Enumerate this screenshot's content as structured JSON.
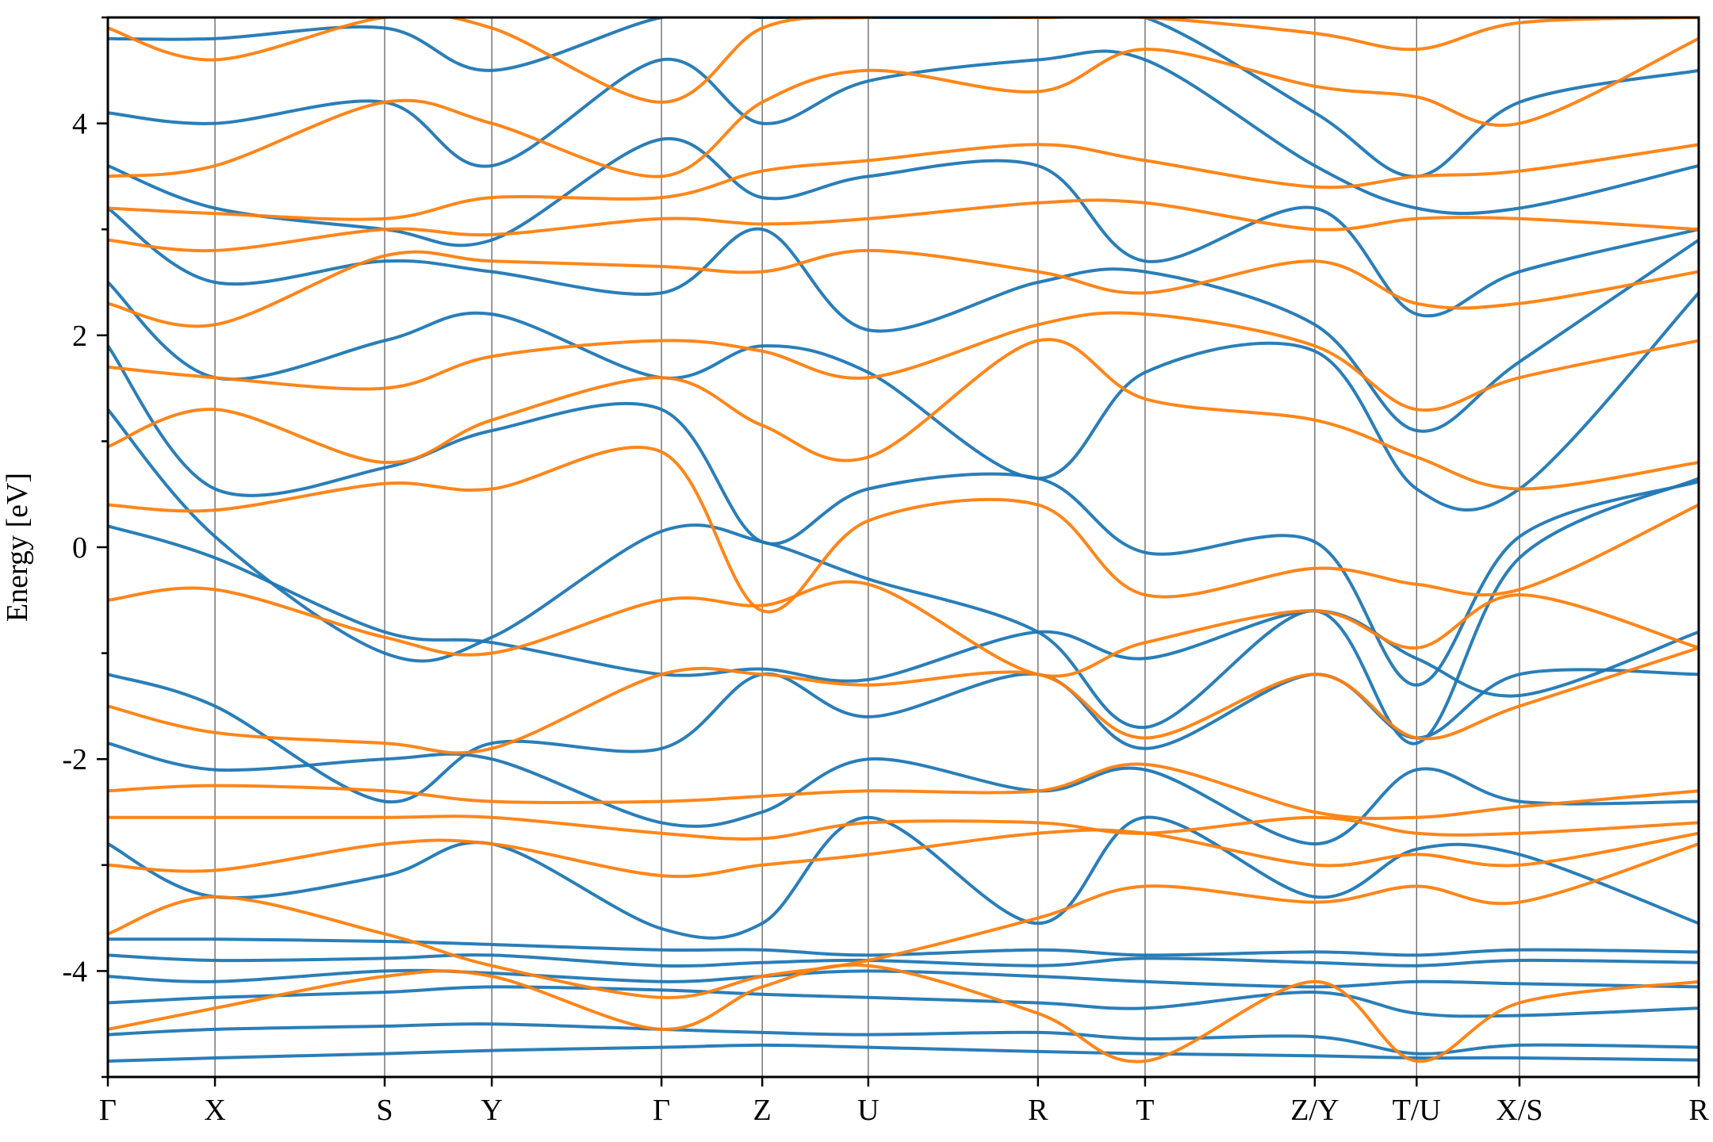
{
  "chart_data": {
    "type": "line",
    "title": "",
    "xlabel": "",
    "ylabel": "Energy [eV]",
    "ylim": [
      -5,
      5
    ],
    "yticks": [
      -4,
      -2,
      0,
      2,
      4
    ],
    "ytick_labels": [
      "-4",
      "-2",
      "0",
      "2",
      "4"
    ],
    "k_points": [
      "Γ",
      "X",
      "S",
      "Y",
      "Γ",
      "Z",
      "U",
      "R",
      "T",
      "Z/Y",
      "T/U",
      "X/S",
      "R"
    ],
    "k_distances": [
      0,
      0.101,
      0.261,
      0.362,
      0.522,
      0.617,
      0.717,
      0.877,
      0.978,
      1.138,
      1.234,
      1.331,
      1.5
    ],
    "grid": {
      "x_vertical_lines_at_k_points": true,
      "y_grid": false
    },
    "legend": "none",
    "series": [
      {
        "color": "#1f77b4",
        "bands": [
          [
            -4.85,
            -4.82,
            -4.78,
            -4.75,
            -4.72,
            -4.7,
            -4.72,
            -4.76,
            -4.78,
            -4.8,
            -4.82,
            -4.82,
            -4.84
          ],
          [
            -4.6,
            -4.55,
            -4.52,
            -4.5,
            -4.55,
            -4.58,
            -4.6,
            -4.58,
            -4.64,
            -4.62,
            -4.78,
            -4.7,
            -4.72
          ],
          [
            -4.3,
            -4.25,
            -4.2,
            -4.15,
            -4.18,
            -4.22,
            -4.25,
            -4.3,
            -4.35,
            -4.2,
            -4.4,
            -4.42,
            -4.35
          ],
          [
            -4.05,
            -4.1,
            -4.0,
            -4.02,
            -4.1,
            -4.05,
            -4.0,
            -4.05,
            -4.1,
            -4.15,
            -4.1,
            -4.12,
            -4.15
          ],
          [
            -3.85,
            -3.9,
            -3.88,
            -3.85,
            -3.95,
            -3.92,
            -3.9,
            -3.95,
            -3.88,
            -3.92,
            -3.95,
            -3.9,
            -3.92
          ],
          [
            -3.7,
            -3.7,
            -3.72,
            -3.75,
            -3.8,
            -3.8,
            -3.85,
            -3.8,
            -3.85,
            -3.82,
            -3.85,
            -3.8,
            -3.82
          ],
          [
            -2.8,
            -3.3,
            -3.1,
            -2.8,
            -3.6,
            -3.55,
            -2.55,
            -3.55,
            -2.55,
            -3.3,
            -2.85,
            -2.9,
            -3.55
          ],
          [
            -1.85,
            -2.1,
            -2.0,
            -2.0,
            -2.6,
            -2.5,
            -2.0,
            -2.3,
            -2.1,
            -2.8,
            -2.1,
            -2.4,
            -2.4
          ],
          [
            -1.2,
            -1.5,
            -2.4,
            -1.85,
            -1.9,
            -1.2,
            -1.6,
            -1.2,
            -1.9,
            -1.2,
            -1.8,
            -1.2,
            -1.2
          ],
          [
            0.2,
            -0.1,
            -0.8,
            -0.9,
            -1.2,
            -1.15,
            -1.25,
            -0.8,
            -1.05,
            -0.6,
            -1.05,
            -1.4,
            -0.8
          ],
          [
            1.3,
            0.1,
            -1.0,
            -0.85,
            0.15,
            0.05,
            -0.3,
            -0.8,
            -1.7,
            -0.6,
            -1.85,
            -0.1,
            0.65
          ],
          [
            1.9,
            0.55,
            0.75,
            1.1,
            1.3,
            0.05,
            0.55,
            0.65,
            -0.05,
            0.05,
            -1.3,
            0.1,
            0.62
          ],
          [
            2.5,
            1.6,
            1.95,
            2.2,
            1.6,
            1.9,
            1.65,
            0.65,
            1.65,
            1.85,
            0.55,
            0.55,
            2.4
          ],
          [
            3.2,
            2.5,
            2.7,
            2.6,
            2.4,
            3.0,
            2.05,
            2.5,
            2.6,
            2.1,
            1.1,
            1.75,
            2.9
          ],
          [
            3.6,
            3.2,
            3.0,
            2.9,
            3.85,
            3.3,
            3.5,
            3.6,
            2.7,
            3.2,
            2.2,
            2.6,
            3.0
          ],
          [
            4.1,
            4.0,
            4.2,
            3.6,
            4.6,
            4.0,
            4.4,
            4.6,
            4.6,
            3.6,
            3.2,
            3.2,
            3.6
          ],
          [
            4.8,
            4.8,
            4.9,
            4.5,
            5.0,
            5.0,
            5.0,
            5.0,
            5.0,
            4.1,
            3.5,
            4.2,
            4.5
          ]
        ]
      },
      {
        "color": "#ff7f0e",
        "bands": [
          [
            -4.55,
            -4.35,
            -4.05,
            -4.05,
            -4.55,
            -4.15,
            -3.95,
            -4.4,
            -4.85,
            -4.1,
            -4.85,
            -4.3,
            -4.1
          ],
          [
            -3.65,
            -3.3,
            -3.65,
            -3.95,
            -4.25,
            -4.05,
            -3.9,
            -3.5,
            -3.2,
            -3.35,
            -3.2,
            -3.35,
            -2.8
          ],
          [
            -3.0,
            -3.05,
            -2.8,
            -2.8,
            -3.1,
            -3.0,
            -2.9,
            -2.7,
            -2.7,
            -3.0,
            -2.9,
            -3.0,
            -2.7
          ],
          [
            -2.55,
            -2.55,
            -2.55,
            -2.55,
            -2.7,
            -2.75,
            -2.6,
            -2.6,
            -2.7,
            -2.55,
            -2.7,
            -2.7,
            -2.6
          ],
          [
            -2.3,
            -2.25,
            -2.3,
            -2.4,
            -2.4,
            -2.35,
            -2.3,
            -2.3,
            -2.05,
            -2.5,
            -2.55,
            -2.45,
            -2.3
          ],
          [
            -1.5,
            -1.75,
            -1.85,
            -1.9,
            -1.2,
            -1.2,
            -1.3,
            -1.2,
            -1.8,
            -1.2,
            -1.8,
            -1.5,
            -0.95
          ],
          [
            -0.5,
            -0.4,
            -0.85,
            -1.0,
            -0.5,
            -0.55,
            -0.35,
            -1.2,
            -0.9,
            -0.6,
            -0.95,
            -0.45,
            -0.95
          ],
          [
            0.4,
            0.35,
            0.6,
            0.55,
            0.9,
            -0.6,
            0.25,
            0.4,
            -0.45,
            -0.2,
            -0.35,
            -0.4,
            0.4
          ],
          [
            0.95,
            1.3,
            0.8,
            1.2,
            1.6,
            1.15,
            0.85,
            1.95,
            1.4,
            1.2,
            0.85,
            0.55,
            0.8
          ],
          [
            1.7,
            1.6,
            1.5,
            1.8,
            1.95,
            1.85,
            1.6,
            2.1,
            2.2,
            1.9,
            1.3,
            1.6,
            1.95
          ],
          [
            2.3,
            2.1,
            2.75,
            2.7,
            2.65,
            2.6,
            2.8,
            2.6,
            2.4,
            2.7,
            2.3,
            2.3,
            2.6
          ],
          [
            2.9,
            2.8,
            3.0,
            2.95,
            3.1,
            3.05,
            3.1,
            3.25,
            3.25,
            3.0,
            3.1,
            3.1,
            3.0
          ],
          [
            3.2,
            3.15,
            3.1,
            3.3,
            3.3,
            3.55,
            3.65,
            3.8,
            3.65,
            3.4,
            3.5,
            3.55,
            3.8
          ],
          [
            3.5,
            3.6,
            4.2,
            4.0,
            3.5,
            4.2,
            4.5,
            4.3,
            4.7,
            4.35,
            4.25,
            4.0,
            4.8
          ],
          [
            4.9,
            4.6,
            5.0,
            4.9,
            4.2,
            4.9,
            5.0,
            5.0,
            5.0,
            4.85,
            4.7,
            4.95,
            5.0
          ]
        ]
      }
    ]
  }
}
